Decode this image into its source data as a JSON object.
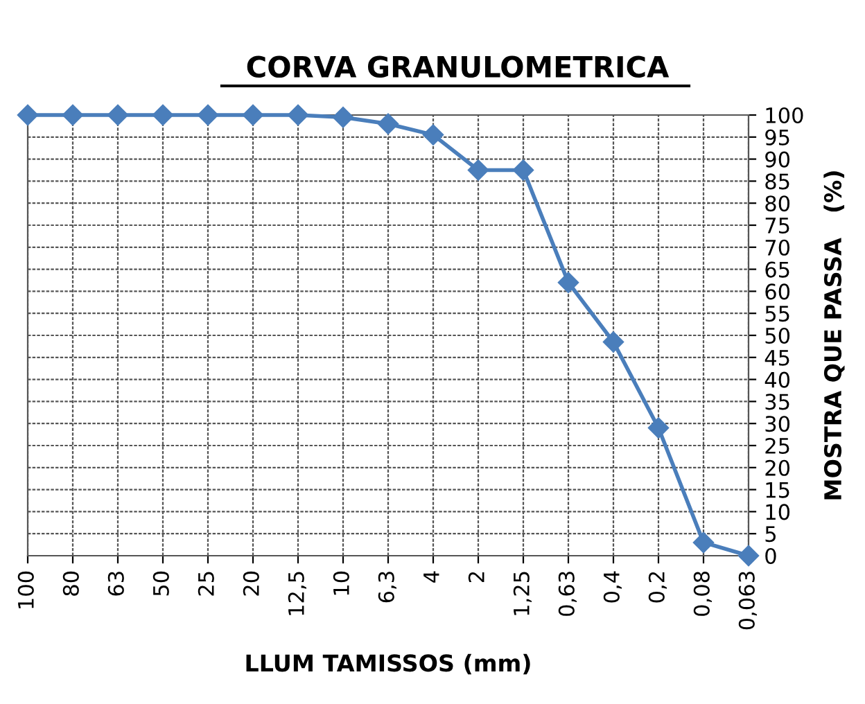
{
  "chart_data": {
    "type": "line",
    "title": "CORVA GRANULOMETRICA",
    "xlabel": "LLUM TAMISSOS (mm)",
    "ylabel": "MOSTRA QUE PASSA   (%)",
    "categories": [
      "100",
      "80",
      "63",
      "50",
      "25",
      "20",
      "12,5",
      "10",
      "6,3",
      "4",
      "2",
      "1,25",
      "0,63",
      "0,4",
      "0,2",
      "0,08",
      "0,063"
    ],
    "series": [
      {
        "color": "#4a7ebb",
        "values": [
          100,
          100,
          100,
          100,
          100,
          100,
          100,
          99.5,
          98,
          95.5,
          87.5,
          87.5,
          62,
          48.5,
          29,
          3,
          0
        ]
      }
    ],
    "ylim": [
      0,
      100
    ],
    "yticks": [
      0,
      5,
      10,
      15,
      20,
      25,
      30,
      35,
      40,
      45,
      50,
      55,
      60,
      65,
      70,
      75,
      80,
      85,
      90,
      95,
      100
    ],
    "grid": true,
    "marker": "diamond",
    "line_style": "solid"
  }
}
